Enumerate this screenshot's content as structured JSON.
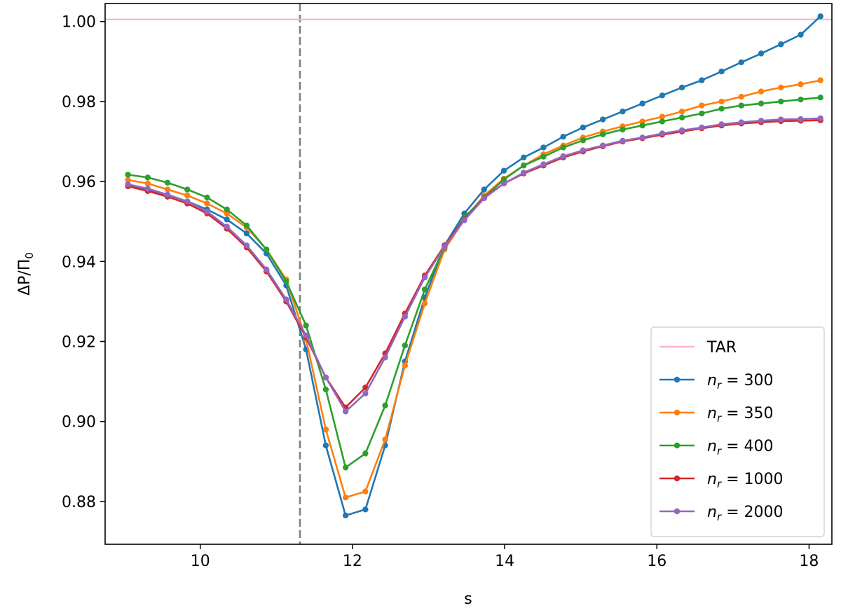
{
  "chart_data": {
    "type": "line",
    "xlabel": "s",
    "ylabel": "ΔP/Π",
    "ylabel_sub": "0",
    "xlim": [
      8.75,
      18.3
    ],
    "ylim": [
      0.8693,
      1.0045
    ],
    "xticks": [
      10,
      12,
      14,
      16,
      18
    ],
    "xtick_labels": [
      "10",
      "12",
      "14",
      "16",
      "18"
    ],
    "yticks": [
      0.88,
      0.9,
      0.92,
      0.94,
      0.96,
      0.98,
      1.0
    ],
    "ytick_labels": [
      "0.88",
      "0.90",
      "0.92",
      "0.94",
      "0.96",
      "0.98",
      "1.00"
    ],
    "vline": {
      "x": 11.31,
      "color": "#7f7f7f",
      "style": "dashed"
    },
    "reference_line": {
      "name": "TAR",
      "y": 1.0005,
      "color": "#ffb6c1"
    },
    "legend_position": "lower right",
    "x": [
      9.05,
      9.31,
      9.57,
      9.83,
      10.09,
      10.35,
      10.61,
      10.87,
      11.13,
      11.39,
      11.65,
      11.91,
      12.17,
      12.43,
      12.69,
      12.95,
      13.21,
      13.47,
      13.73,
      13.99,
      14.25,
      14.51,
      14.77,
      15.03,
      15.29,
      15.55,
      15.81,
      16.07,
      16.33,
      16.59,
      16.85,
      17.11,
      17.37,
      17.63,
      17.89,
      18.15
    ],
    "series": [
      {
        "name": "n_r = 300",
        "label_main": "n",
        "label_sub": "r",
        "label_tail": " = 300",
        "color": "#1f77b4",
        "values": [
          0.959,
          0.9578,
          0.9567,
          0.955,
          0.953,
          0.9505,
          0.947,
          0.942,
          0.934,
          0.918,
          0.894,
          0.8765,
          0.878,
          0.894,
          0.915,
          0.931,
          0.944,
          0.952,
          0.958,
          0.9627,
          0.966,
          0.9685,
          0.9712,
          0.9735,
          0.9755,
          0.9775,
          0.9795,
          0.9815,
          0.9835,
          0.9853,
          0.9875,
          0.9898,
          0.992,
          0.9943,
          0.9967,
          1.0013
        ]
      },
      {
        "name": "n_r = 350",
        "label_main": "n",
        "label_sub": "r",
        "label_tail": " = 350",
        "color": "#ff7f0e",
        "values": [
          0.9604,
          0.9595,
          0.958,
          0.9565,
          0.9545,
          0.952,
          0.9485,
          0.943,
          0.9355,
          0.9205,
          0.898,
          0.881,
          0.8825,
          0.8955,
          0.914,
          0.9295,
          0.943,
          0.9505,
          0.9565,
          0.9607,
          0.964,
          0.9668,
          0.969,
          0.971,
          0.9725,
          0.9738,
          0.975,
          0.9762,
          0.9775,
          0.979,
          0.98,
          0.9812,
          0.9825,
          0.9835,
          0.9843,
          0.9853
        ]
      },
      {
        "name": "n_r = 400",
        "label_main": "n",
        "label_sub": "r",
        "label_tail": " = 400",
        "color": "#2ca02c",
        "values": [
          0.9617,
          0.961,
          0.9597,
          0.958,
          0.956,
          0.953,
          0.949,
          0.943,
          0.935,
          0.924,
          0.908,
          0.8885,
          0.892,
          0.904,
          0.919,
          0.933,
          0.9435,
          0.951,
          0.956,
          0.9605,
          0.964,
          0.9662,
          0.9685,
          0.9703,
          0.9718,
          0.973,
          0.974,
          0.975,
          0.976,
          0.977,
          0.9782,
          0.979,
          0.9795,
          0.98,
          0.9805,
          0.981
        ]
      },
      {
        "name": "n_r = 1000",
        "label_main": "n",
        "label_sub": "r",
        "label_tail": " = 1000",
        "color": "#d62728",
        "values": [
          0.9588,
          0.9576,
          0.9562,
          0.9545,
          0.952,
          0.9482,
          0.9435,
          0.9375,
          0.93,
          0.921,
          0.911,
          0.9035,
          0.9085,
          0.917,
          0.927,
          0.9365,
          0.944,
          0.9505,
          0.956,
          0.9595,
          0.962,
          0.964,
          0.966,
          0.9675,
          0.9688,
          0.97,
          0.9708,
          0.9717,
          0.9725,
          0.9733,
          0.974,
          0.9745,
          0.9748,
          0.9751,
          0.9752,
          0.9753
        ]
      },
      {
        "name": "n_r = 2000",
        "label_main": "n",
        "label_sub": "r",
        "label_tail": " = 2000",
        "color": "#9467bd",
        "values": [
          0.9593,
          0.9582,
          0.9567,
          0.955,
          0.9525,
          0.9487,
          0.944,
          0.938,
          0.9305,
          0.9215,
          0.911,
          0.9025,
          0.907,
          0.916,
          0.9262,
          0.936,
          0.9437,
          0.9503,
          0.9558,
          0.9595,
          0.9622,
          0.9643,
          0.9663,
          0.9678,
          0.969,
          0.9702,
          0.971,
          0.972,
          0.9728,
          0.9735,
          0.9743,
          0.9748,
          0.9752,
          0.9755,
          0.9756,
          0.9758
        ]
      }
    ]
  }
}
